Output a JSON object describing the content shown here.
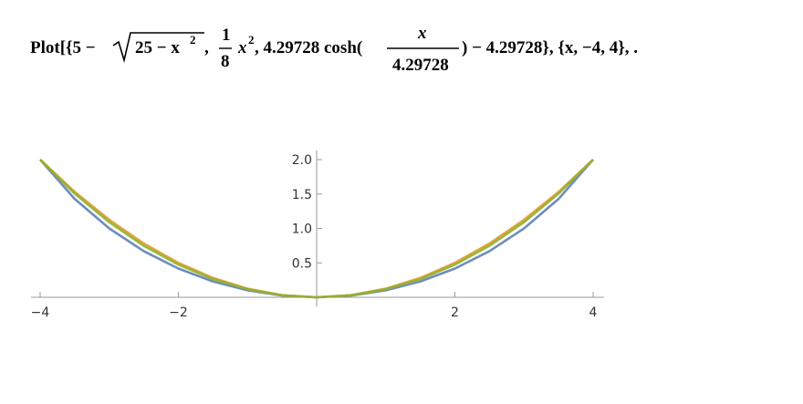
{
  "formula": {
    "prefix": "Plot[{5 −",
    "radicand": "25 − x",
    "radicand_power": "2",
    "fraction_numerator": "1",
    "fraction_denominator": "8",
    "term_x": "x",
    "term_power": "2",
    "cosh_part": ", 4.29728 cosh(",
    "cosh_numerator": "x",
    "cosh_denominator": "4.29728",
    "suffix": ") − 4.29728}, {x, −4, 4}, ."
  },
  "chart_data": {
    "type": "line",
    "x": [
      -4,
      -3.5,
      -3,
      -2.5,
      -2,
      -1.5,
      -1,
      -0.5,
      0,
      0.5,
      1,
      1.5,
      2,
      2.5,
      3,
      3.5,
      4
    ],
    "series": [
      {
        "color": "#5e81b5",
        "values": [
          2,
          1.429,
          1,
          0.67,
          0.417,
          0.23,
          0.101,
          0.025,
          0,
          0.025,
          0.101,
          0.23,
          0.417,
          0.67,
          1,
          1.429,
          2
        ]
      },
      {
        "color": "#e19c24",
        "values": [
          2,
          1.531,
          1.125,
          0.781,
          0.5,
          0.281,
          0.125,
          0.031,
          0,
          0.031,
          0.125,
          0.281,
          0.5,
          0.781,
          1.125,
          1.531,
          2
        ]
      },
      {
        "color": "#8fb032",
        "values": [
          2,
          1.506,
          1.091,
          0.748,
          0.474,
          0.264,
          0.117,
          0.029,
          0,
          0.029,
          0.117,
          0.264,
          0.474,
          0.748,
          1.091,
          1.506,
          2
        ]
      }
    ],
    "xlim": [
      -4,
      4
    ],
    "ylim": [
      0,
      2
    ],
    "xticks": [
      {
        "value": -4,
        "label": "−4"
      },
      {
        "value": -2,
        "label": "−2"
      },
      2,
      4
    ],
    "yticks": [
      0.5,
      {
        "value": 1,
        "label": "1.0"
      },
      1.5,
      {
        "value": 2,
        "label": "2.0"
      }
    ]
  }
}
